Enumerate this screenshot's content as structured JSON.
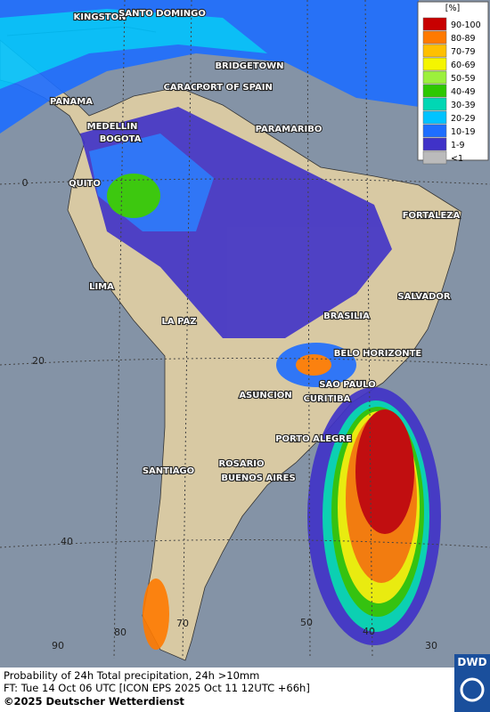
{
  "legend": {
    "title": "[%]",
    "entries": [
      {
        "label": "90-100",
        "color": "#c80000"
      },
      {
        "label": "80-89",
        "color": "#ff7a00"
      },
      {
        "label": "70-79",
        "color": "#ffc000"
      },
      {
        "label": "60-69",
        "color": "#f5f500"
      },
      {
        "label": "50-59",
        "color": "#9cf03c"
      },
      {
        "label": "40-49",
        "color": "#2dc800"
      },
      {
        "label": "30-39",
        "color": "#00d7b4"
      },
      {
        "label": "20-29",
        "color": "#00c3ff"
      },
      {
        "label": "10-19",
        "color": "#1e6eff"
      },
      {
        "label": "1-9",
        "color": "#4032c8"
      },
      {
        "label": "<1",
        "color": "#bbbbbb"
      }
    ]
  },
  "cities": [
    "KINGSTON",
    "SANTO DOMINGO",
    "BRIDGETOWN",
    "CARACAS",
    "PORT OF SPAIN",
    "PANAMA",
    "PARAMARIBO",
    "MEDELLIN",
    "BOGOTA",
    "QUITO",
    "FORTALEZA",
    "LIMA",
    "SALVADOR",
    "BRASILIA",
    "LA PAZ",
    "BELO HORIZONTE",
    "SAO PAULO",
    "ASUNCION",
    "CURITIBA",
    "PORTO ALEGRE",
    "SANTIAGO",
    "ROSARIO",
    "BUENOS AIRES"
  ],
  "grid_labels": {
    "latitudes": [
      "0",
      "20",
      "40"
    ],
    "longitudes": [
      "90",
      "80",
      "70",
      "50",
      "40",
      "30"
    ]
  },
  "footer": {
    "line1": "Probability of 24h Total precipitation, 24h >10mm",
    "line2": "FT: Tue 14 Oct 06 UTC [ICON EPS 2025 Oct 11 12UTC +66h]",
    "copyright": "©2025 Deutscher Wetterdienst"
  },
  "logo": "DWD"
}
